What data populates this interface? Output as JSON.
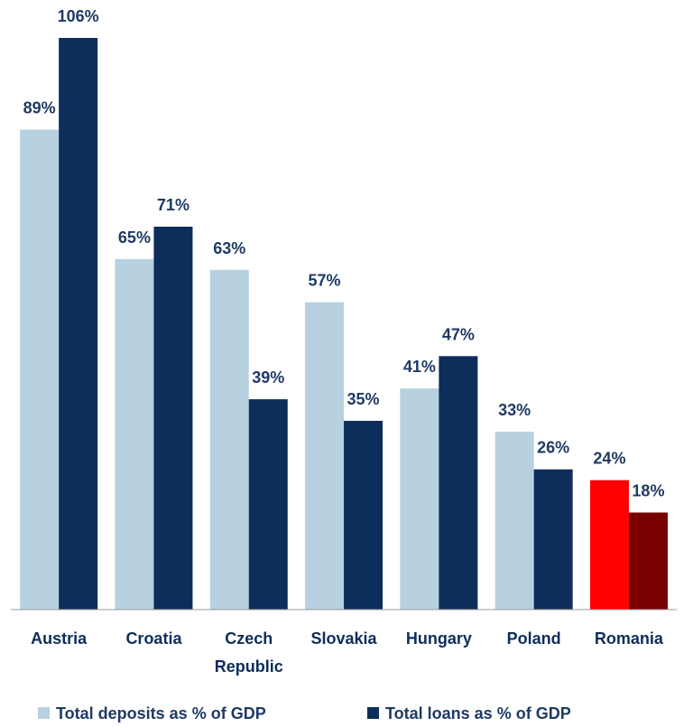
{
  "chart_data": {
    "type": "bar",
    "categories": [
      "Austria",
      "Croatia",
      "Czech\nRepublic",
      "Slovakia",
      "Hungary",
      "Poland",
      "Romania"
    ],
    "series": [
      {
        "name": "Total deposits as % of GDP",
        "color": "#b7d1e0",
        "colors": [
          "#b7d1e0",
          "#b7d1e0",
          "#b7d1e0",
          "#b7d1e0",
          "#b7d1e0",
          "#b7d1e0",
          "#ff0000"
        ],
        "values": [
          89,
          65,
          63,
          57,
          41,
          33,
          24
        ],
        "value_labels": [
          "89%",
          "65%",
          "63%",
          "57%",
          "41%",
          "33%",
          "24%"
        ]
      },
      {
        "name": "Total loans as % of GDP",
        "color": "#0d2d5a",
        "colors": [
          "#0d2d5a",
          "#0d2d5a",
          "#0d2d5a",
          "#0d2d5a",
          "#0d2d5a",
          "#0d2d5a",
          "#7a0000"
        ],
        "values": [
          106,
          71,
          39,
          35,
          47,
          26,
          18
        ],
        "value_labels": [
          "106%",
          "71%",
          "39%",
          "35%",
          "47%",
          "26%",
          "18%"
        ]
      }
    ],
    "ylim": [
      0,
      106
    ],
    "legend": "bottom"
  }
}
